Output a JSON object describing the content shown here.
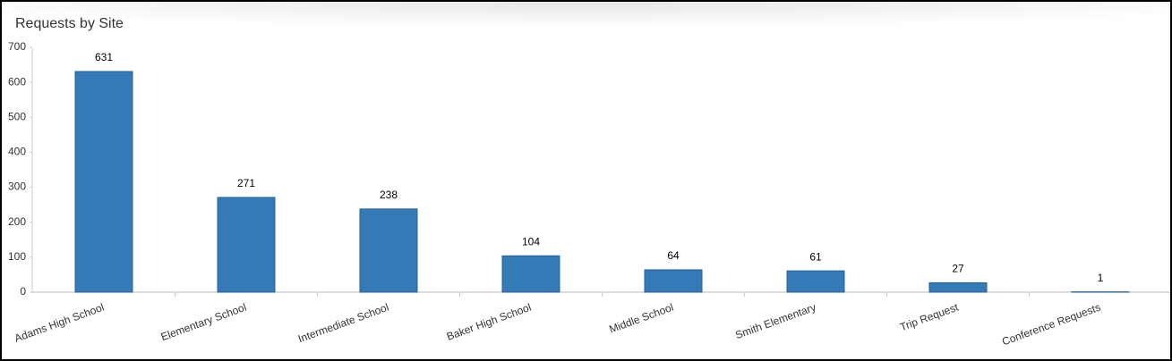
{
  "chart_data": {
    "type": "bar",
    "title": "Requests by Site",
    "categories": [
      "Adams High School",
      "Elementary School",
      "Intermediate School",
      "Baker High School",
      "Middle School",
      "Smith Elementary",
      "Trip Request",
      "Conference Requests"
    ],
    "values": [
      631,
      271,
      238,
      104,
      64,
      61,
      27,
      1
    ],
    "color": "#337ab7",
    "ylim": [
      0,
      700
    ],
    "yticks": [
      0,
      100,
      200,
      300,
      400,
      500,
      600,
      700
    ],
    "grid": false
  }
}
